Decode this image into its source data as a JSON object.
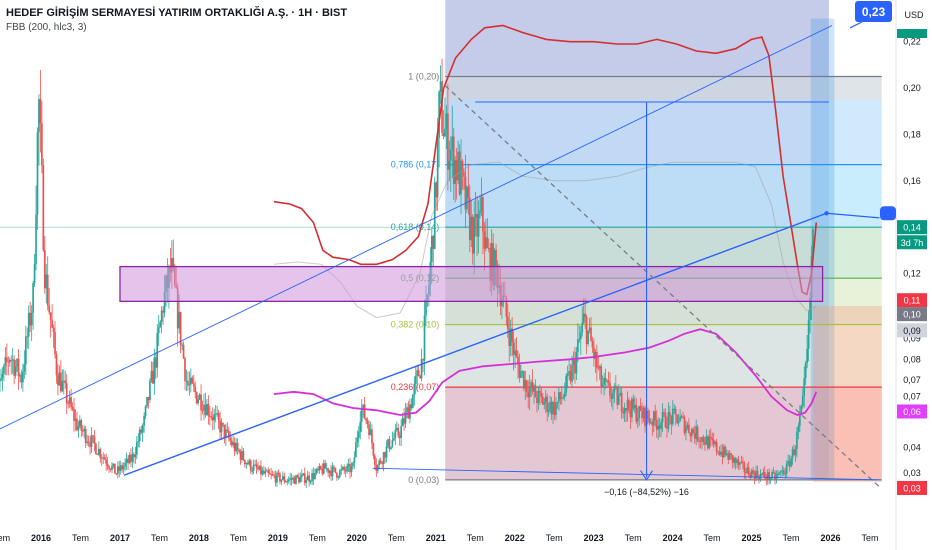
{
  "header": {
    "title": "HEDEF GİRİŞİM SERMAYESİ YATIRIM ORTAKLIĞI A.Ş. · 1H · BIST",
    "indicator": "FBB (200, hlc3, 3)"
  },
  "colors": {
    "up": "#26a69a",
    "down": "#ef5350",
    "bb_outer": "#d32f2f",
    "bb_basis": "#d62fd6",
    "trend": "#2962ff",
    "fib_line": "#9e9e9e"
  },
  "chart_data": {
    "type": "candlestick",
    "currency_label": "USD",
    "ylim": [
      0.018,
      0.238
    ],
    "x_ticks": [
      {
        "label": "Tem",
        "t": 2015.5
      },
      {
        "label": "2016",
        "t": 2016.0
      },
      {
        "label": "Tem",
        "t": 2016.5
      },
      {
        "label": "2017",
        "t": 2017.0
      },
      {
        "label": "Tem",
        "t": 2017.5
      },
      {
        "label": "2018",
        "t": 2018.0
      },
      {
        "label": "Tem",
        "t": 2018.5
      },
      {
        "label": "2019",
        "t": 2019.0
      },
      {
        "label": "Tem",
        "t": 2019.5
      },
      {
        "label": "2020",
        "t": 2020.0
      },
      {
        "label": "Tem",
        "t": 2020.5
      },
      {
        "label": "2021",
        "t": 2021.0
      },
      {
        "label": "Tem",
        "t": 2021.5
      },
      {
        "label": "2022",
        "t": 2022.0
      },
      {
        "label": "Tem",
        "t": 2022.5
      },
      {
        "label": "2023",
        "t": 2023.0
      },
      {
        "label": "Tem",
        "t": 2023.5
      },
      {
        "label": "2024",
        "t": 2024.0
      },
      {
        "label": "Tem",
        "t": 2024.5
      },
      {
        "label": "2025",
        "t": 2025.0
      },
      {
        "label": "Tem",
        "t": 2025.5
      },
      {
        "label": "2026",
        "t": 2026.0
      },
      {
        "label": "Tem",
        "t": 2026.5
      }
    ],
    "y_ticks": [
      {
        "label": "0,22",
        "v": 0.22
      },
      {
        "label": "0,20",
        "v": 0.2
      },
      {
        "label": "0,18",
        "v": 0.18
      },
      {
        "label": "0,16",
        "v": 0.16
      },
      {
        "label": "0,14",
        "v": 0.14
      },
      {
        "label": "0,12",
        "v": 0.12
      },
      {
        "label": "0,09",
        "v": 0.092
      },
      {
        "label": "0,08",
        "v": 0.083
      },
      {
        "label": "0,07",
        "v": 0.074
      },
      {
        "label": "0,07",
        "v": 0.067
      },
      {
        "label": "0,04",
        "v": 0.045
      },
      {
        "label": "0,03",
        "v": 0.034
      }
    ],
    "price_tags": [
      {
        "label": "0,23",
        "v": 0.229,
        "bg": "#2962ff",
        "fg": "#ffffff",
        "callout": true
      },
      {
        "label": "0,14",
        "v": 0.14,
        "bg": "#089981",
        "fg": "#ffffff"
      },
      {
        "label": "3d 7h",
        "v": 0.1335,
        "bg": "#089981",
        "fg": "#ffffff"
      },
      {
        "label": "0,11",
        "v": 0.1085,
        "bg": "#f23645",
        "fg": "#ffffff"
      },
      {
        "label": "0,10",
        "v": 0.1025,
        "bg": "#787b86",
        "fg": "#ffffff"
      },
      {
        "label": "0,09",
        "v": 0.0955,
        "bg": "#d1d4dc",
        "fg": "#131722"
      },
      {
        "label": "0,06",
        "v": 0.0605,
        "bg": "#e040fb",
        "fg": "#ffffff"
      },
      {
        "label": "0,03",
        "v": 0.0275,
        "bg": "#f23645",
        "fg": "#ffffff"
      }
    ],
    "fib_levels": [
      {
        "ratio": 1,
        "price": 0.2,
        "label": "1 (0,20)",
        "color": "#787b86"
      },
      {
        "ratio": 0.786,
        "price": 0.17,
        "label": "0,786 (0,17)",
        "color": "#2196f3"
      },
      {
        "ratio": 0.618,
        "price": 0.14,
        "label": "0,618 (0,14)",
        "color": "#26a69a"
      },
      {
        "ratio": 0.5,
        "price": 0.12,
        "label": "0,5 (0,12)",
        "color": "#4caf50"
      },
      {
        "ratio": 0.382,
        "price": 0.1,
        "label": "0,382 (0,10)",
        "color": "#a5c13e"
      },
      {
        "ratio": 0.236,
        "price": 0.07,
        "label": "0,236 (0,07)",
        "color": "#f23645"
      },
      {
        "ratio": 0,
        "price": 0.03,
        "label": "0 (0,03)",
        "color": "#787b86"
      }
    ],
    "measure_label": "−0,16 (−84,52%) −16",
    "candles": {
      "anchors": [
        [
          2015.4,
          0.062
        ],
        [
          2015.6,
          0.085
        ],
        [
          2015.75,
          0.075
        ],
        [
          2015.9,
          0.11
        ],
        [
          2015.97,
          0.196
        ],
        [
          2016.05,
          0.12
        ],
        [
          2016.2,
          0.078
        ],
        [
          2016.45,
          0.055
        ],
        [
          2016.7,
          0.045
        ],
        [
          2016.95,
          0.034
        ],
        [
          2017.15,
          0.04
        ],
        [
          2017.3,
          0.055
        ],
        [
          2017.45,
          0.083
        ],
        [
          2017.55,
          0.108
        ],
        [
          2017.65,
          0.122
        ],
        [
          2017.75,
          0.098
        ],
        [
          2017.85,
          0.072
        ],
        [
          2018.05,
          0.065
        ],
        [
          2018.25,
          0.055
        ],
        [
          2018.45,
          0.045
        ],
        [
          2018.65,
          0.037
        ],
        [
          2018.85,
          0.033
        ],
        [
          2019.1,
          0.031
        ],
        [
          2019.4,
          0.032
        ],
        [
          2019.6,
          0.036
        ],
        [
          2019.75,
          0.034
        ],
        [
          2019.95,
          0.036
        ],
        [
          2020.05,
          0.062
        ],
        [
          2020.15,
          0.055
        ],
        [
          2020.25,
          0.036
        ],
        [
          2020.4,
          0.046
        ],
        [
          2020.55,
          0.052
        ],
        [
          2020.7,
          0.066
        ],
        [
          2020.82,
          0.082
        ],
        [
          2020.92,
          0.118
        ],
        [
          2021.0,
          0.155
        ],
        [
          2021.05,
          0.195
        ],
        [
          2021.12,
          0.18
        ],
        [
          2021.2,
          0.172
        ],
        [
          2021.28,
          0.165
        ],
        [
          2021.38,
          0.15
        ],
        [
          2021.48,
          0.135
        ],
        [
          2021.58,
          0.145
        ],
        [
          2021.65,
          0.128
        ],
        [
          2021.78,
          0.12
        ],
        [
          2021.9,
          0.1
        ],
        [
          2022.02,
          0.082
        ],
        [
          2022.15,
          0.072
        ],
        [
          2022.3,
          0.066
        ],
        [
          2022.5,
          0.062
        ],
        [
          2022.62,
          0.068
        ],
        [
          2022.75,
          0.08
        ],
        [
          2022.88,
          0.1
        ],
        [
          2022.98,
          0.088
        ],
        [
          2023.1,
          0.072
        ],
        [
          2023.3,
          0.066
        ],
        [
          2023.55,
          0.06
        ],
        [
          2023.8,
          0.056
        ],
        [
          2024.05,
          0.058
        ],
        [
          2024.25,
          0.052
        ],
        [
          2024.5,
          0.046
        ],
        [
          2024.75,
          0.04
        ],
        [
          2024.92,
          0.035
        ],
        [
          2025.1,
          0.033
        ],
        [
          2025.3,
          0.032
        ],
        [
          2025.45,
          0.036
        ],
        [
          2025.55,
          0.045
        ],
        [
          2025.65,
          0.063
        ],
        [
          2025.72,
          0.092
        ],
        [
          2025.78,
          0.14
        ]
      ]
    },
    "bb_upper": [
      [
        2018.95,
        0.151
      ],
      [
        2019.15,
        0.15
      ],
      [
        2019.3,
        0.148
      ],
      [
        2019.45,
        0.142
      ],
      [
        2019.57,
        0.13
      ],
      [
        2019.7,
        0.127
      ],
      [
        2019.9,
        0.126
      ],
      [
        2020.05,
        0.124
      ],
      [
        2020.25,
        0.124
      ],
      [
        2020.45,
        0.126
      ],
      [
        2020.62,
        0.13
      ],
      [
        2020.78,
        0.136
      ],
      [
        2020.9,
        0.15
      ],
      [
        2021.0,
        0.175
      ],
      [
        2021.1,
        0.2
      ],
      [
        2021.25,
        0.213
      ],
      [
        2021.45,
        0.221
      ],
      [
        2021.62,
        0.226
      ],
      [
        2021.85,
        0.227
      ],
      [
        2022.1,
        0.224
      ],
      [
        2022.4,
        0.221
      ],
      [
        2022.7,
        0.22
      ],
      [
        2023.0,
        0.22
      ],
      [
        2023.3,
        0.219
      ],
      [
        2023.55,
        0.219
      ],
      [
        2023.8,
        0.221
      ],
      [
        2024.05,
        0.219
      ],
      [
        2024.3,
        0.216
      ],
      [
        2024.55,
        0.215
      ],
      [
        2024.8,
        0.217
      ],
      [
        2025.0,
        0.221
      ],
      [
        2025.13,
        0.222
      ],
      [
        2025.22,
        0.214
      ],
      [
        2025.3,
        0.192
      ],
      [
        2025.4,
        0.162
      ],
      [
        2025.5,
        0.141
      ],
      [
        2025.58,
        0.124
      ],
      [
        2025.64,
        0.112
      ],
      [
        2025.7,
        0.111
      ],
      [
        2025.76,
        0.12
      ],
      [
        2025.82,
        0.142
      ]
    ],
    "bb_basis": [
      [
        2018.95,
        0.068
      ],
      [
        2019.2,
        0.069
      ],
      [
        2019.45,
        0.068
      ],
      [
        2019.7,
        0.064
      ],
      [
        2019.95,
        0.062
      ],
      [
        2020.25,
        0.061
      ],
      [
        2020.55,
        0.059
      ],
      [
        2020.75,
        0.06
      ],
      [
        2020.92,
        0.065
      ],
      [
        2021.08,
        0.073
      ],
      [
        2021.3,
        0.078
      ],
      [
        2021.6,
        0.08
      ],
      [
        2021.95,
        0.081
      ],
      [
        2022.3,
        0.082
      ],
      [
        2022.7,
        0.083
      ],
      [
        2023.0,
        0.084
      ],
      [
        2023.4,
        0.086
      ],
      [
        2023.7,
        0.088
      ],
      [
        2023.95,
        0.091
      ],
      [
        2024.15,
        0.094
      ],
      [
        2024.35,
        0.096
      ],
      [
        2024.55,
        0.094
      ],
      [
        2024.8,
        0.086
      ],
      [
        2025.05,
        0.076
      ],
      [
        2025.25,
        0.067
      ],
      [
        2025.45,
        0.061
      ],
      [
        2025.58,
        0.059
      ],
      [
        2025.68,
        0.06
      ],
      [
        2025.76,
        0.064
      ],
      [
        2025.82,
        0.069
      ]
    ],
    "bb_mid": [
      [
        2018.95,
        0.124
      ],
      [
        2019.25,
        0.125
      ],
      [
        2019.55,
        0.124
      ],
      [
        2019.8,
        0.116
      ],
      [
        2020.0,
        0.106
      ],
      [
        2020.25,
        0.101
      ],
      [
        2020.55,
        0.103
      ],
      [
        2020.8,
        0.12
      ],
      [
        2020.95,
        0.145
      ],
      [
        2021.15,
        0.16
      ],
      [
        2021.45,
        0.167
      ],
      [
        2021.8,
        0.168
      ],
      [
        2022.1,
        0.162
      ],
      [
        2022.5,
        0.16
      ],
      [
        2022.9,
        0.16
      ],
      [
        2023.3,
        0.162
      ],
      [
        2023.7,
        0.166
      ],
      [
        2024.0,
        0.168
      ],
      [
        2024.4,
        0.168
      ],
      [
        2024.8,
        0.168
      ],
      [
        2025.05,
        0.166
      ],
      [
        2025.25,
        0.15
      ],
      [
        2025.4,
        0.125
      ],
      [
        2025.55,
        0.11
      ],
      [
        2025.7,
        0.104
      ],
      [
        2025.82,
        0.106
      ]
    ]
  }
}
